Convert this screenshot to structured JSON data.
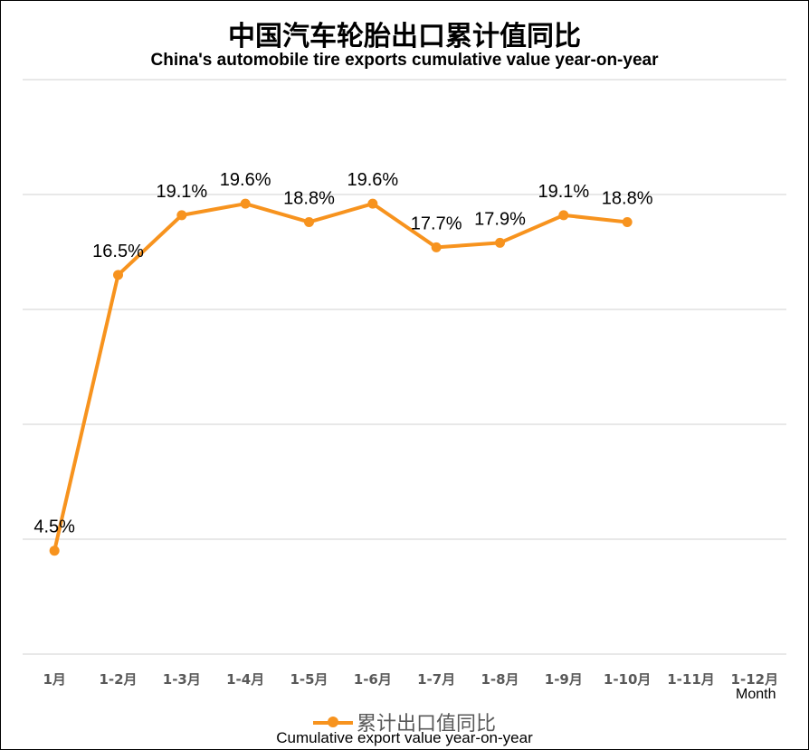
{
  "chart_data": {
    "type": "line",
    "title": "中国汽车轮胎出口累计值同比",
    "subtitle": "China's automobile tire exports cumulative value year-on-year",
    "x_unit_label": "Month",
    "categories": [
      "1月",
      "1-2月",
      "1-3月",
      "1-4月",
      "1-5月",
      "1-6月",
      "1-7月",
      "1-8月",
      "1-9月",
      "1-10月",
      "1-11月",
      "1-12月"
    ],
    "series": [
      {
        "name": "累计出口值同比",
        "name_en": "Cumulative export value year-on-year",
        "values": [
          4.5,
          16.5,
          19.1,
          19.6,
          18.8,
          19.6,
          17.7,
          17.9,
          19.1,
          18.8,
          null,
          null
        ],
        "labels": [
          "4.5%",
          "16.5%",
          "19.1%",
          "19.6%",
          "18.8%",
          "19.6%",
          "17.7%",
          "17.9%",
          "19.1%",
          "18.8%",
          "",
          ""
        ]
      }
    ],
    "ylim": [
      0,
      25
    ],
    "y_gridlines": [
      0,
      5,
      10,
      15,
      20,
      25
    ],
    "y_tick_labels_shown": false,
    "grid": true,
    "legend_position": "bottom",
    "colors": {
      "series": "#f7931e",
      "grid": "#d9d9d9",
      "label": "#000000"
    }
  }
}
